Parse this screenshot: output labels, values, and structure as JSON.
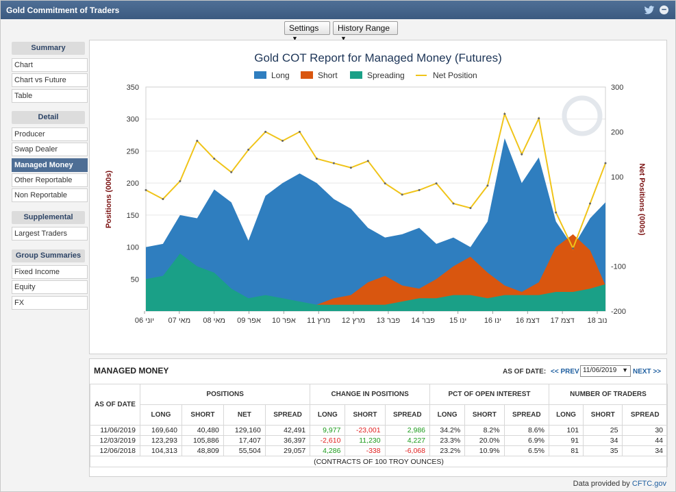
{
  "window": {
    "title": "Gold Commitment of Traders"
  },
  "toolbar": {
    "settings_label": "Settings",
    "history_label": "History Range"
  },
  "sidebar": {
    "sections": [
      {
        "heading": "Summary",
        "items": [
          "Chart",
          "Chart vs Future",
          "Table"
        ]
      },
      {
        "heading": "Detail",
        "items": [
          "Producer",
          "Swap Dealer",
          "Managed Money",
          "Other Reportable",
          "Non Reportable"
        ]
      },
      {
        "heading": "Supplemental",
        "items": [
          "Largest Traders"
        ]
      },
      {
        "heading": "Group Summaries",
        "items": [
          "Fixed Income",
          "Equity",
          "FX"
        ]
      }
    ],
    "active_item": "Managed Money"
  },
  "chart_data": {
    "type": "area",
    "title": "Gold COT Report for Managed Money (Futures)",
    "legend": [
      "Long",
      "Short",
      "Spreading",
      "Net Position"
    ],
    "ylabel": "Positions (000s)",
    "y2label": "Net Positions (000s)",
    "ylim": [
      0,
      350
    ],
    "y2lim": [
      -200,
      300
    ],
    "yticks": [
      50,
      100,
      150,
      200,
      250,
      300,
      350
    ],
    "y2ticks": [
      -200,
      -100,
      100,
      200,
      300
    ],
    "xticks": [
      "06 יוני",
      "07 מאי",
      "08 מאי",
      "09 אפר",
      "10 אפר",
      "11 מרץ",
      "12 מרץ",
      "13 פבר",
      "14 פבר",
      "15 ינו",
      "16 ינו",
      "16 דצמ",
      "17 דצמ",
      "18 נוב"
    ],
    "x": [
      2006.4,
      2006.9,
      2007.4,
      2007.9,
      2008.4,
      2008.9,
      2009.4,
      2009.9,
      2010.4,
      2010.9,
      2011.4,
      2011.9,
      2012.4,
      2012.9,
      2013.4,
      2013.9,
      2014.4,
      2014.9,
      2015.4,
      2015.9,
      2016.4,
      2016.9,
      2017.4,
      2017.9,
      2018.4,
      2018.9,
      2019.4,
      2019.85
    ],
    "series": [
      {
        "name": "Long",
        "color": "#2f7ebf",
        "values": [
          100,
          105,
          150,
          145,
          190,
          170,
          110,
          180,
          200,
          215,
          200,
          175,
          160,
          130,
          115,
          120,
          130,
          105,
          115,
          100,
          140,
          270,
          200,
          240,
          140,
          100,
          145,
          170
        ]
      },
      {
        "name": "Short",
        "color": "#d9560f",
        "values": [
          0,
          0,
          0,
          0,
          0,
          0,
          0,
          0,
          0,
          0,
          10,
          20,
          25,
          45,
          55,
          40,
          35,
          50,
          70,
          85,
          60,
          40,
          30,
          45,
          100,
          120,
          95,
          40
        ]
      },
      {
        "name": "Spreading",
        "color": "#1aa087",
        "values": [
          50,
          55,
          90,
          70,
          60,
          35,
          20,
          25,
          20,
          15,
          10,
          10,
          10,
          10,
          10,
          15,
          20,
          20,
          25,
          25,
          20,
          25,
          25,
          25,
          30,
          30,
          35,
          42
        ]
      },
      {
        "name": "Net Position",
        "color": "#f0c419",
        "axis": "right",
        "values": [
          70,
          50,
          90,
          180,
          140,
          110,
          160,
          200,
          180,
          200,
          140,
          130,
          120,
          135,
          85,
          60,
          70,
          85,
          40,
          30,
          80,
          240,
          150,
          230,
          20,
          -60,
          40,
          130
        ]
      }
    ]
  },
  "table": {
    "title": "MANAGED MONEY",
    "as_of_label": "AS OF DATE:",
    "prev_label": "<< PREV",
    "next_label": "NEXT >>",
    "selected_date": "11/06/2019",
    "col_as_of": "AS OF DATE",
    "groups": [
      "POSITIONS",
      "CHANGE IN POSITIONS",
      "PCT OF OPEN INTEREST",
      "NUMBER OF TRADERS"
    ],
    "subheads": [
      "LONG",
      "SHORT",
      "NET",
      "SPREAD",
      "LONG",
      "SHORT",
      "SPREAD",
      "LONG",
      "SHORT",
      "SPREAD",
      "LONG",
      "SHORT",
      "SPREAD"
    ],
    "rows": [
      {
        "date": "11/06/2019",
        "cells": [
          "169,640",
          "40,480",
          "129,160",
          "42,491",
          "9,977",
          "-23,001",
          "2,986",
          "34.2%",
          "8.2%",
          "8.6%",
          "101",
          "25",
          "30"
        ]
      },
      {
        "date": "12/03/2019",
        "cells": [
          "123,293",
          "105,886",
          "17,407",
          "36,397",
          "-2,610",
          "11,230",
          "4,227",
          "23.3%",
          "20.0%",
          "6.9%",
          "91",
          "34",
          "44"
        ]
      },
      {
        "date": "12/06/2018",
        "cells": [
          "104,313",
          "48,809",
          "55,504",
          "29,057",
          "4,286",
          "-338",
          "-6,068",
          "23.2%",
          "10.9%",
          "6.5%",
          "81",
          "35",
          "34"
        ]
      }
    ],
    "footer": "(CONTRACTS OF 100 TROY OUNCES)"
  },
  "credit": {
    "prefix": "Data provided by",
    "link": "CFTC.gov"
  }
}
